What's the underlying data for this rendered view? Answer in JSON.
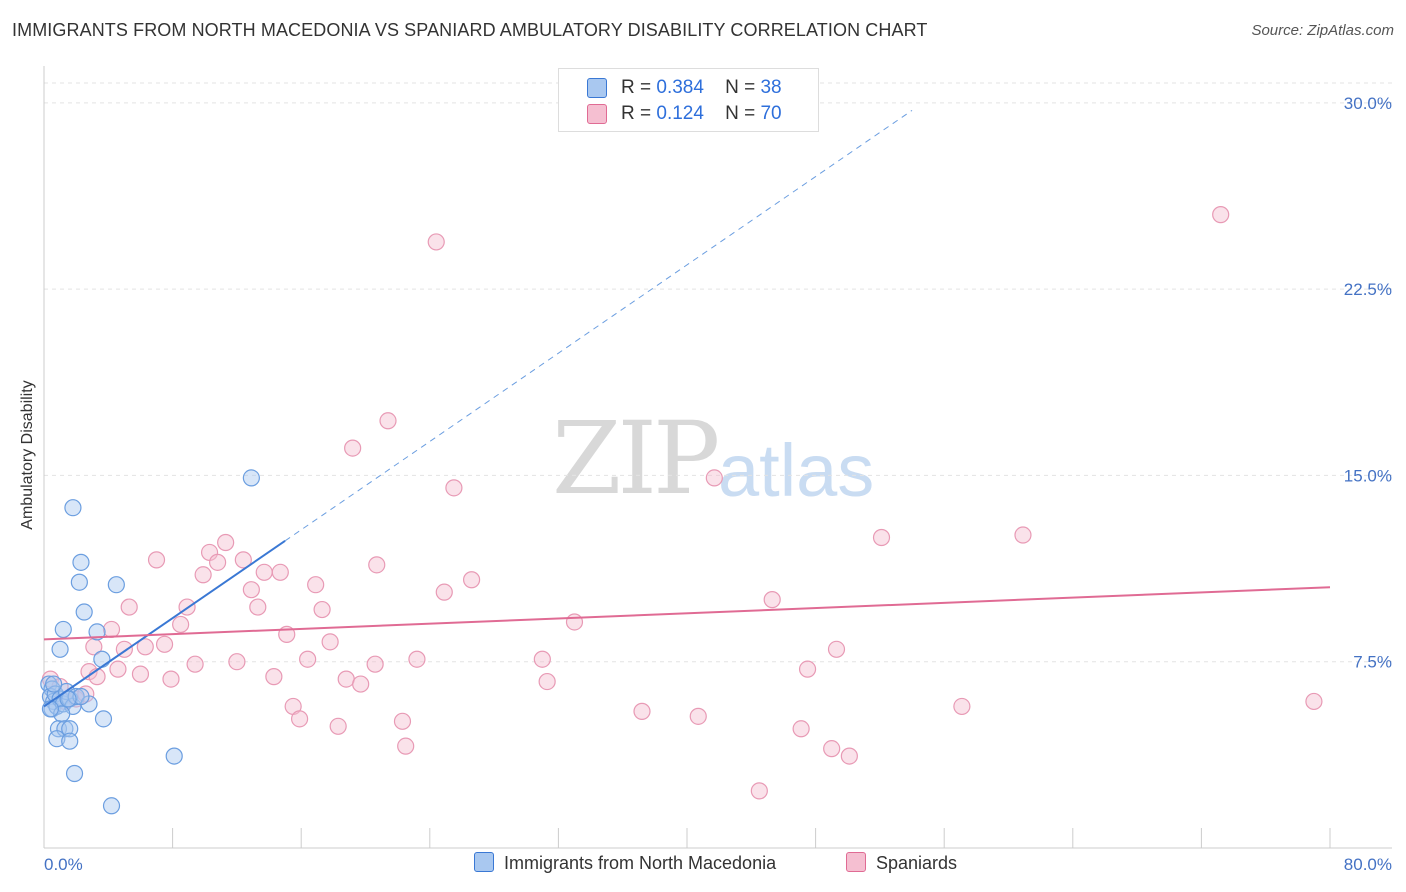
{
  "title": "IMMIGRANTS FROM NORTH MACEDONIA VS SPANIARD AMBULATORY DISABILITY CORRELATION CHART",
  "source": "Source: ZipAtlas.com",
  "watermark": {
    "zip": "ZIP",
    "atlas": "atlas"
  },
  "legend": {
    "series1": {
      "r_label": "R =",
      "r_value": "0.384",
      "n_label": "N =",
      "n_value": "38"
    },
    "series2": {
      "r_label": "R =",
      "r_value": "0.124",
      "n_label": "N =",
      "n_value": "70"
    }
  },
  "colors": {
    "blue": "#3a78d4",
    "blue_fill": "#a9c8f0",
    "pink": "#e06b94",
    "pink_fill": "#f5bfd1",
    "tick": "#4472c4"
  },
  "chart_data": {
    "type": "scatter",
    "title": "IMMIGRANTS FROM NORTH MACEDONIA VS SPANIARD AMBULATORY DISABILITY CORRELATION CHART",
    "xlabel": "",
    "ylabel": "Ambulatory Disability",
    "xlim": [
      0,
      80
    ],
    "ylim": [
      0,
      31
    ],
    "x_tick_labels": [
      "0.0%",
      "80.0%"
    ],
    "y_ticks": [
      7.5,
      15.0,
      22.5,
      30.0
    ],
    "y_tick_labels": [
      "7.5%",
      "15.0%",
      "22.5%",
      "30.0%"
    ],
    "legend_position": "top-center",
    "series": [
      {
        "name": "Immigrants from North Macedonia",
        "color": "#3a78d4",
        "points": [
          [
            0.3,
            6.6
          ],
          [
            0.5,
            6.4
          ],
          [
            0.4,
            6.1
          ],
          [
            0.6,
            5.9
          ],
          [
            0.7,
            6.2
          ],
          [
            0.5,
            5.6
          ],
          [
            0.8,
            5.7
          ],
          [
            1.0,
            6.0
          ],
          [
            1.2,
            5.8
          ],
          [
            1.4,
            6.3
          ],
          [
            1.6,
            6.0
          ],
          [
            1.8,
            5.7
          ],
          [
            2.0,
            6.1
          ],
          [
            1.1,
            5.4
          ],
          [
            0.9,
            4.8
          ],
          [
            1.3,
            4.8
          ],
          [
            1.6,
            4.8
          ],
          [
            0.8,
            4.4
          ],
          [
            1.6,
            4.3
          ],
          [
            1.9,
            3.0
          ],
          [
            2.8,
            5.8
          ],
          [
            3.7,
            5.2
          ],
          [
            3.6,
            7.6
          ],
          [
            3.3,
            8.7
          ],
          [
            2.5,
            9.5
          ],
          [
            1.0,
            8.0
          ],
          [
            1.2,
            8.8
          ],
          [
            2.2,
            10.7
          ],
          [
            2.3,
            11.5
          ],
          [
            1.8,
            13.7
          ],
          [
            4.5,
            10.6
          ],
          [
            8.1,
            3.7
          ],
          [
            4.2,
            1.7
          ],
          [
            12.9,
            14.9
          ],
          [
            0.4,
            5.6
          ],
          [
            2.3,
            6.1
          ],
          [
            0.6,
            6.6
          ],
          [
            1.5,
            6.0
          ]
        ]
      },
      {
        "name": "Spaniards",
        "color": "#e06b94",
        "points": [
          [
            0.4,
            6.8
          ],
          [
            1.0,
            6.5
          ],
          [
            1.3,
            5.9
          ],
          [
            2.0,
            6.0
          ],
          [
            2.6,
            6.2
          ],
          [
            2.8,
            7.1
          ],
          [
            3.1,
            8.1
          ],
          [
            3.3,
            6.9
          ],
          [
            4.2,
            8.8
          ],
          [
            4.6,
            7.2
          ],
          [
            5.0,
            8.0
          ],
          [
            5.3,
            9.7
          ],
          [
            6.0,
            7.0
          ],
          [
            6.3,
            8.1
          ],
          [
            7.0,
            11.6
          ],
          [
            7.5,
            8.2
          ],
          [
            7.9,
            6.8
          ],
          [
            8.5,
            9.0
          ],
          [
            8.9,
            9.7
          ],
          [
            9.4,
            7.4
          ],
          [
            9.9,
            11.0
          ],
          [
            10.3,
            11.9
          ],
          [
            10.8,
            11.5
          ],
          [
            11.3,
            12.3
          ],
          [
            12.0,
            7.5
          ],
          [
            12.4,
            11.6
          ],
          [
            12.9,
            10.4
          ],
          [
            13.3,
            9.7
          ],
          [
            13.7,
            11.1
          ],
          [
            14.3,
            6.9
          ],
          [
            14.7,
            11.1
          ],
          [
            15.1,
            8.6
          ],
          [
            15.5,
            5.7
          ],
          [
            15.9,
            5.2
          ],
          [
            16.4,
            7.6
          ],
          [
            16.9,
            10.6
          ],
          [
            17.3,
            9.6
          ],
          [
            17.8,
            8.3
          ],
          [
            18.3,
            4.9
          ],
          [
            18.8,
            6.8
          ],
          [
            19.2,
            16.1
          ],
          [
            19.7,
            6.6
          ],
          [
            20.6,
            7.4
          ],
          [
            20.7,
            11.4
          ],
          [
            21.4,
            17.2
          ],
          [
            22.3,
            5.1
          ],
          [
            22.5,
            4.1
          ],
          [
            23.2,
            7.6
          ],
          [
            24.4,
            24.4
          ],
          [
            24.9,
            10.3
          ],
          [
            25.5,
            14.5
          ],
          [
            26.6,
            10.8
          ],
          [
            31.0,
            7.6
          ],
          [
            31.3,
            6.7
          ],
          [
            33.0,
            9.1
          ],
          [
            37.2,
            5.5
          ],
          [
            40.7,
            5.3
          ],
          [
            41.7,
            14.9
          ],
          [
            44.5,
            2.3
          ],
          [
            45.3,
            10.0
          ],
          [
            47.1,
            4.8
          ],
          [
            47.5,
            7.2
          ],
          [
            49.0,
            4.0
          ],
          [
            49.3,
            8.0
          ],
          [
            50.1,
            3.7
          ],
          [
            52.1,
            12.5
          ],
          [
            57.1,
            5.7
          ],
          [
            60.9,
            12.6
          ],
          [
            73.2,
            25.5
          ],
          [
            79.0,
            5.9
          ]
        ]
      }
    ],
    "trend_lines": [
      {
        "series": "Immigrants from North Macedonia",
        "solid_x": [
          0,
          15
        ],
        "dashed_x": [
          15,
          54
        ],
        "y_at_x0": 5.7,
        "slope": 0.4444
      },
      {
        "series": "Spaniards",
        "x": [
          0,
          80
        ],
        "y": [
          8.4,
          10.5
        ]
      }
    ]
  }
}
